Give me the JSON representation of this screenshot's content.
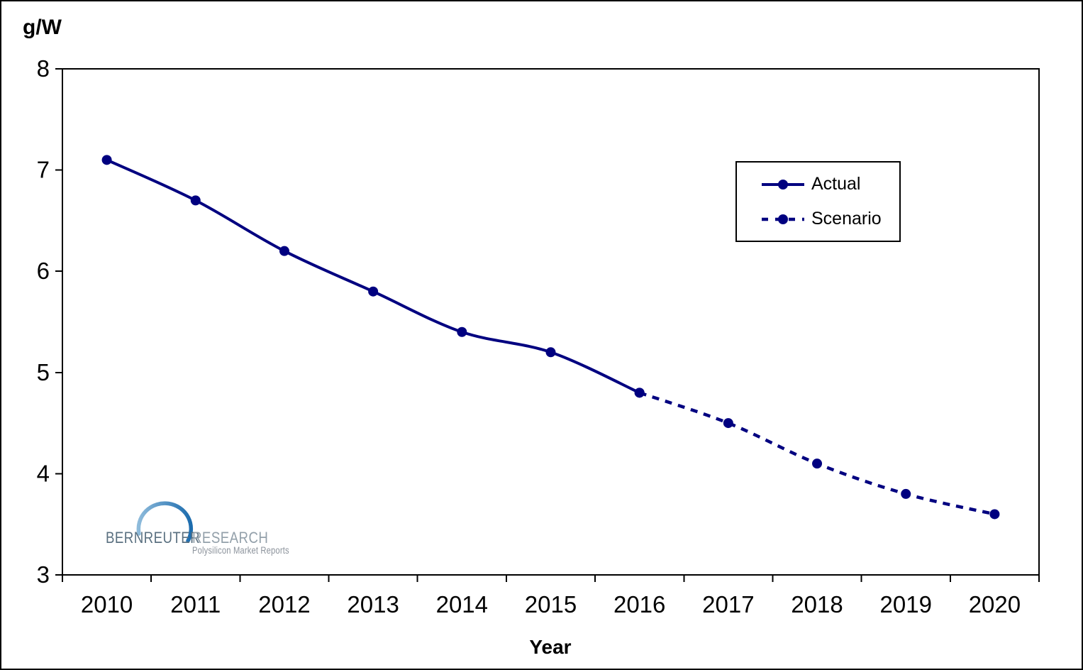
{
  "unit_label": "g/W",
  "x_axis_title": "Year",
  "legend": {
    "actual": "Actual",
    "scenario": "Scenario"
  },
  "chart_data": {
    "type": "line",
    "title": "",
    "xlabel": "Year",
    "ylabel": "g/W",
    "x": [
      2010,
      2011,
      2012,
      2013,
      2014,
      2015,
      2016,
      2017,
      2018,
      2019,
      2020
    ],
    "series": [
      {
        "name": "Actual",
        "style": "solid",
        "x": [
          2010,
          2011,
          2012,
          2013,
          2014,
          2015,
          2016
        ],
        "values": [
          7.1,
          6.7,
          6.2,
          5.8,
          5.4,
          5.2,
          4.8
        ]
      },
      {
        "name": "Scenario",
        "style": "dashed",
        "x": [
          2016,
          2017,
          2018,
          2019,
          2020
        ],
        "values": [
          4.8,
          4.5,
          4.1,
          3.8,
          3.6
        ]
      }
    ],
    "ylim": [
      3,
      8
    ],
    "yticks": [
      3,
      4,
      5,
      6,
      7,
      8
    ],
    "grid": false,
    "legend_position": "upper-right",
    "line_color": "#000080",
    "axis_color": "#000000"
  },
  "logo": {
    "brand_left": "BERNREUTER",
    "brand_right": "RESEARCH",
    "tagline": "Polysilicon Market Reports"
  },
  "colors": {
    "series": "#000080",
    "swoosh_dark": "#1c6cae",
    "swoosh_light": "#8ebbdb",
    "brand_left_text": "#5a7080",
    "brand_right_text": "#93a0aa",
    "tagline_text": "#8b929b"
  }
}
